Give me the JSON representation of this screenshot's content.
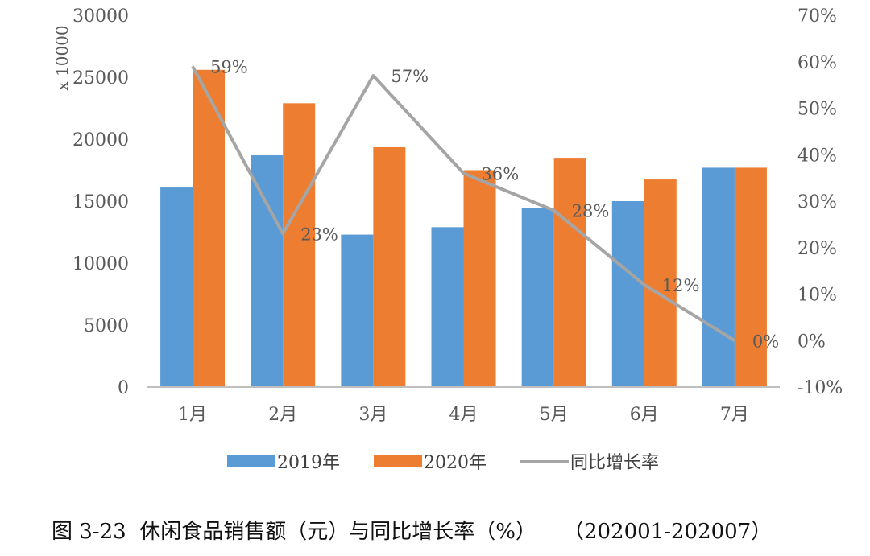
{
  "chart_data": {
    "type": "bar",
    "categories": [
      "1月",
      "2月",
      "3月",
      "4月",
      "5月",
      "6月",
      "7月"
    ],
    "series": [
      {
        "name": "2019年",
        "kind": "bar",
        "axis": "left",
        "color": "#5B9BD5",
        "values": [
          16100,
          18700,
          12300,
          12900,
          14450,
          15000,
          17700
        ]
      },
      {
        "name": "2020年",
        "kind": "bar",
        "axis": "left",
        "color": "#ED7D31",
        "values": [
          25600,
          22900,
          19350,
          17500,
          18500,
          16750,
          17700
        ]
      },
      {
        "name": "同比增长率",
        "kind": "line",
        "axis": "right",
        "color": "#A5A5A5",
        "values": [
          59,
          23,
          57,
          36,
          28,
          12,
          0
        ],
        "labels": [
          "59%",
          "23%",
          "57%",
          "36%",
          "28%",
          "12%",
          "0%"
        ]
      }
    ],
    "y_left": {
      "unit_label": "x 10000",
      "min": 0,
      "max": 30000,
      "ticks": [
        "0",
        "5000",
        "10000",
        "15000",
        "20000",
        "25000",
        "30000"
      ]
    },
    "y_right": {
      "min": -10,
      "max": 70,
      "ticks": [
        "-10%",
        "0%",
        "10%",
        "20%",
        "30%",
        "40%",
        "50%",
        "60%",
        "70%"
      ]
    },
    "grid": false,
    "legend_position": "bottom"
  },
  "caption": "图 3-23  休闲食品销售额（元）与同比增长率（%）    （202001-202007）"
}
